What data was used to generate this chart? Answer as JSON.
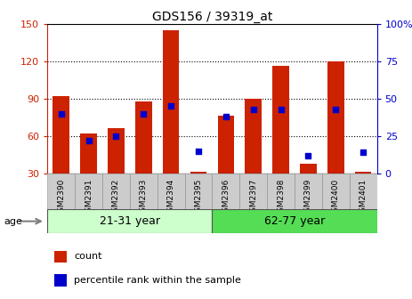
{
  "title": "GDS156 / 39319_at",
  "samples": [
    "GSM2390",
    "GSM2391",
    "GSM2392",
    "GSM2393",
    "GSM2394",
    "GSM2395",
    "GSM2396",
    "GSM2397",
    "GSM2398",
    "GSM2399",
    "GSM2400",
    "GSM2401"
  ],
  "counts": [
    92,
    62,
    66,
    88,
    145,
    31,
    76,
    90,
    116,
    38,
    120,
    31
  ],
  "percentiles": [
    40,
    22,
    25,
    40,
    45,
    15,
    38,
    43,
    43,
    12,
    43,
    14
  ],
  "bar_color": "#cc2200",
  "dot_color": "#0000cc",
  "left_ylim": [
    30,
    150
  ],
  "right_ylim": [
    0,
    100
  ],
  "left_yticks": [
    30,
    60,
    90,
    120,
    150
  ],
  "right_yticks": [
    0,
    25,
    50,
    75,
    100
  ],
  "right_yticklabels": [
    "0",
    "25",
    "50",
    "75",
    "100%"
  ],
  "group1_label": "21-31 year",
  "group2_label": "62-77 year",
  "age_label": "age",
  "legend_count": "count",
  "legend_percentile": "percentile rank within the sample",
  "group1_color": "#ccffcc",
  "group2_color": "#55dd55",
  "xticklabel_bg": "#cccccc",
  "bar_width": 0.6
}
